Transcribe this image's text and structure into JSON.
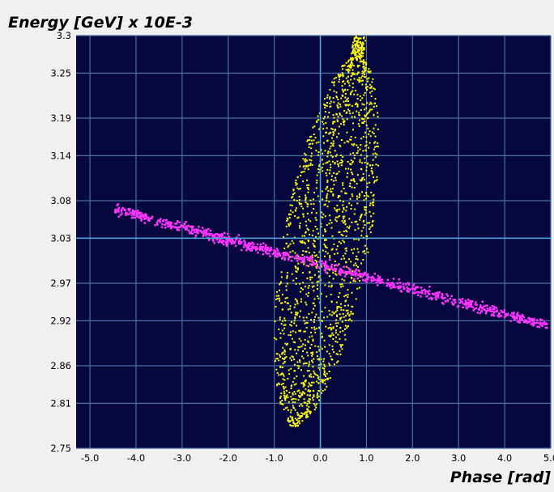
{
  "chart_data": {
    "type": "scatter",
    "title": "",
    "ylabel": "Energy [GeV] x 10E-3",
    "xlabel": "Phase [rad]",
    "xlim": [
      -5.3,
      5.0
    ],
    "ylim": [
      2.75,
      3.3
    ],
    "xticks": [
      "-5.0",
      "-4.0",
      "-3.0",
      "-2.0",
      "-1.0",
      "0.0",
      "1.0",
      "2.0",
      "3.0",
      "4.0",
      "5.0"
    ],
    "xtick_values": [
      -5.0,
      -4.0,
      -3.0,
      -2.0,
      -1.0,
      0.0,
      1.0,
      2.0,
      3.0,
      4.0,
      5.0
    ],
    "yticks": [
      "3.3",
      "3.25",
      "3.19",
      "3.14",
      "3.08",
      "3.03",
      "2.97",
      "2.92",
      "2.86",
      "2.81",
      "2.75"
    ],
    "ytick_values": [
      3.3,
      3.25,
      3.19,
      3.14,
      3.08,
      3.03,
      2.97,
      2.92,
      2.86,
      2.81,
      2.75
    ],
    "grid": true,
    "crosshair": {
      "x": 0.0,
      "y": 3.03
    },
    "colors": {
      "plot_background": "#06073e",
      "grid": "#4a6fa0",
      "crosshair": "#4aa8e0",
      "axes_background": "#f0f0f0"
    },
    "series": [
      {
        "color": "#ffff00",
        "shape": "tilted-ellipse",
        "center": [
          0.15,
          3.01
        ],
        "x_range": [
          -0.8,
          2.0
        ],
        "y_range": [
          2.78,
          3.3
        ]
      },
      {
        "color": "#ff33ff",
        "shape": "line-band",
        "points": [
          [
            -4.5,
            3.07
          ],
          [
            0.0,
            2.995
          ],
          [
            4.9,
            2.915
          ]
        ]
      }
    ]
  }
}
